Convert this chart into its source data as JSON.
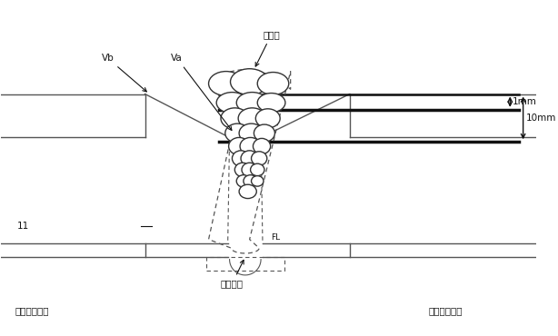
{
  "bg_color": "#ffffff",
  "line_color": "#555555",
  "dark_line_color": "#111111",
  "fig_width": 6.14,
  "fig_height": 3.7,
  "dpi": 100,
  "labels": {
    "welding_part": "溶接部",
    "vb": "Vb",
    "va": "Va",
    "label_11": "11",
    "backing_metal": "裏当て金",
    "fl": "FL",
    "left_base": "開先背側母材",
    "right_base": "開先薪側母材",
    "dim_1mm": "1mm",
    "dim_10mm": "10mm"
  }
}
